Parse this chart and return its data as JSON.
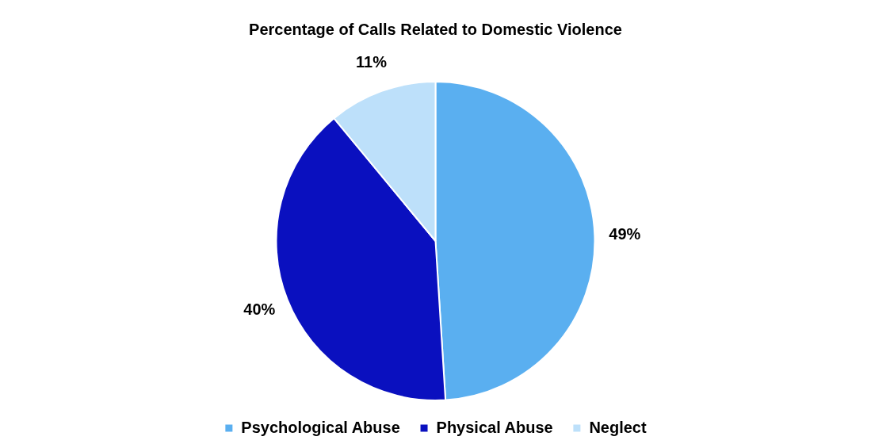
{
  "chart_data": {
    "type": "pie",
    "title": "Percentage of Calls Related to Domestic Violence",
    "categories": [
      "Psychological Abuse",
      "Physical Abuse",
      "Neglect"
    ],
    "values": [
      49,
      40,
      11
    ],
    "colors": [
      "#5aaff0",
      "#0a10bf",
      "#bde0fa"
    ],
    "value_labels": [
      "49%",
      "40%",
      "11%"
    ],
    "legend": "bottom"
  }
}
